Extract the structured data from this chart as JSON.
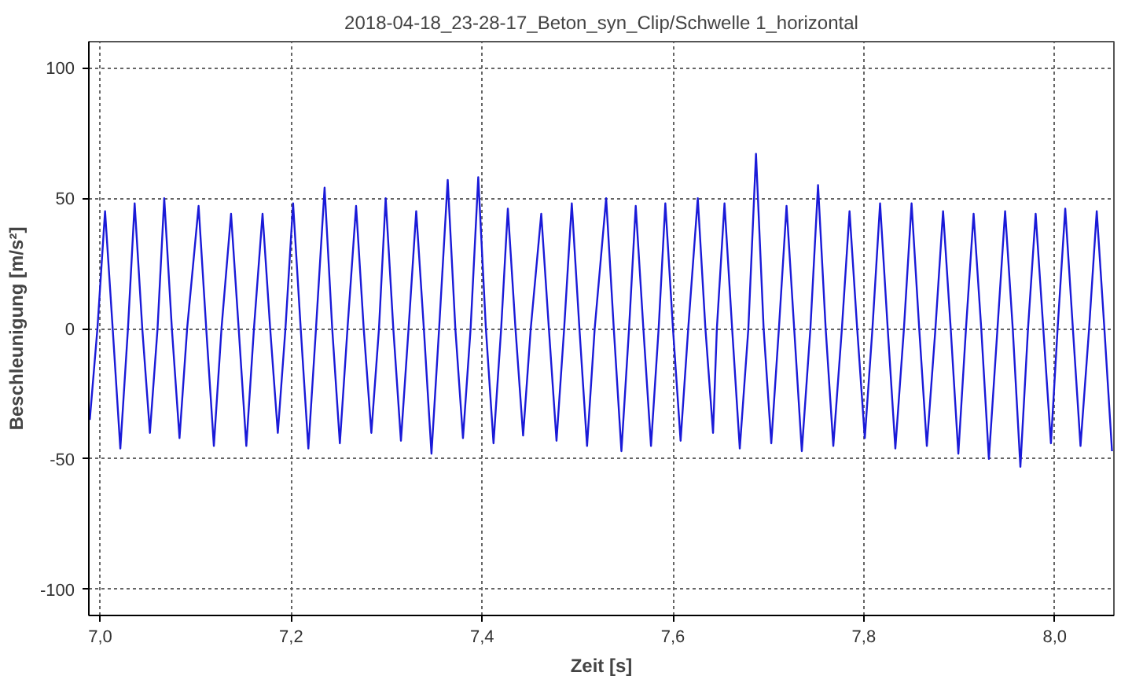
{
  "chart_data": {
    "type": "line",
    "title": "2018-04-18_23-28-17_Beton_syn_Clip/Schwelle 1_horizontal",
    "xlabel": "Zeit [s]",
    "ylabel": "Beschleunigung [m/s²]",
    "x": [
      6.989,
      6.997,
      7.005,
      7.013,
      7.021,
      7.029,
      7.036,
      7.044,
      7.052,
      7.06,
      7.067,
      7.075,
      7.083,
      7.091,
      7.103,
      7.111,
      7.119,
      7.127,
      7.137,
      7.145,
      7.153,
      7.161,
      7.17,
      7.178,
      7.186,
      7.194,
      7.202,
      7.21,
      7.218,
      7.226,
      7.235,
      7.243,
      7.251,
      7.259,
      7.268,
      7.276,
      7.284,
      7.292,
      7.299,
      7.307,
      7.315,
      7.323,
      7.331,
      7.339,
      7.347,
      7.355,
      7.364,
      7.372,
      7.38,
      7.388,
      7.396,
      7.404,
      7.412,
      7.42,
      7.427,
      7.435,
      7.443,
      7.451,
      7.462,
      7.47,
      7.478,
      7.486,
      7.494,
      7.502,
      7.51,
      7.518,
      7.53,
      7.538,
      7.546,
      7.554,
      7.561,
      7.569,
      7.577,
      7.585,
      7.592,
      7.6,
      7.608,
      7.616,
      7.626,
      7.634,
      7.642,
      7.646,
      7.654,
      7.662,
      7.67,
      7.679,
      7.687,
      7.695,
      7.703,
      7.711,
      7.719,
      7.727,
      7.735,
      7.744,
      7.752,
      7.76,
      7.768,
      7.777,
      7.785,
      7.793,
      7.801,
      7.809,
      7.817,
      7.825,
      7.833,
      7.842,
      7.85,
      7.858,
      7.866,
      7.875,
      7.883,
      7.891,
      7.899,
      7.907,
      7.915,
      7.923,
      7.931,
      7.94,
      7.948,
      7.956,
      7.964,
      7.972,
      7.98,
      7.988,
      7.996,
      8.003,
      8.011,
      8.019,
      8.027,
      8.036,
      8.044,
      8.052,
      8.06
    ],
    "series": [
      {
        "color": "#1a1ad8",
        "values": [
          -35,
          0,
          45,
          0,
          -46,
          0,
          48,
          0,
          -40,
          0,
          50,
          0,
          -42,
          0,
          47,
          0,
          -45,
          0,
          44,
          0,
          -45,
          0,
          44,
          0,
          -40,
          0,
          48,
          0,
          -46,
          0,
          54,
          0,
          -44,
          0,
          47,
          0,
          -40,
          0,
          50,
          0,
          -43,
          0,
          45,
          0,
          -48,
          0,
          57,
          0,
          -42,
          0,
          58,
          0,
          -44,
          0,
          46,
          0,
          -41,
          0,
          44,
          0,
          -43,
          0,
          48,
          0,
          -45,
          0,
          50,
          0,
          -47,
          0,
          47,
          0,
          -45,
          0,
          48,
          0,
          -43,
          0,
          50,
          0,
          -40,
          0,
          48,
          0,
          -46,
          0,
          67,
          0,
          -44,
          0,
          47,
          0,
          -47,
          0,
          55,
          0,
          -45,
          0,
          45,
          0,
          -42,
          0,
          48,
          0,
          -46,
          0,
          48,
          0,
          -45,
          0,
          45,
          0,
          -48,
          0,
          44,
          0,
          -50,
          0,
          45,
          0,
          -53,
          0,
          44,
          0,
          -44,
          0,
          46,
          0,
          -45,
          0,
          45,
          0,
          -47
        ]
      }
    ],
    "xlim": [
      6.988,
      8.062
    ],
    "ylim": [
      -110,
      110
    ],
    "xticks": [
      {
        "value": 7.0,
        "label": "7,0"
      },
      {
        "value": 7.2,
        "label": "7,2"
      },
      {
        "value": 7.4,
        "label": "7,4"
      },
      {
        "value": 7.6,
        "label": "7,6"
      },
      {
        "value": 7.8,
        "label": "7,8"
      },
      {
        "value": 8.0,
        "label": "8,0"
      }
    ],
    "yticks": [
      -100,
      -50,
      0,
      50,
      100
    ],
    "grid": true,
    "line_style": "solid",
    "marker": "none"
  }
}
